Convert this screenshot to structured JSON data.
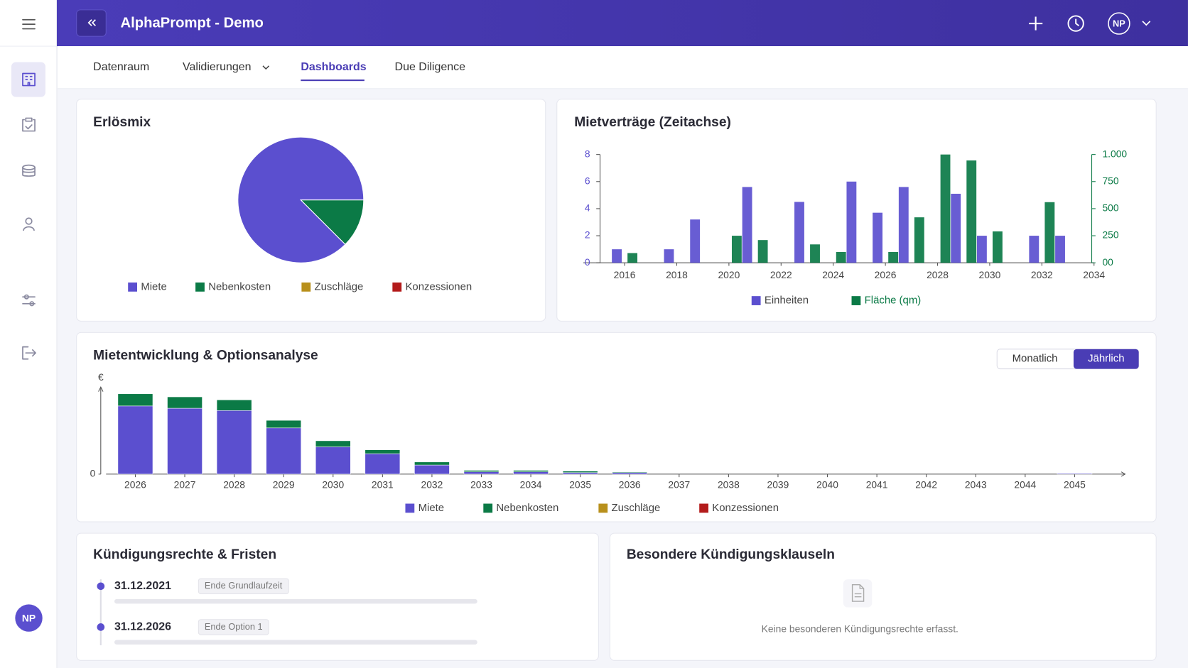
{
  "header": {
    "title": "AlphaPrompt - Demo",
    "user": "NP"
  },
  "sidebar": {
    "user": "NP"
  },
  "tabs": [
    "Datenraum",
    "Validierungen",
    "Dashboards",
    "Due Diligence"
  ],
  "chart_data": [
    {
      "type": "pie",
      "title": "Erlösmix",
      "categories": [
        "Miete",
        "Nebenkosten",
        "Zuschläge",
        "Konzessionen"
      ],
      "values": [
        87.5,
        12.5,
        0,
        0
      ],
      "colors": [
        "#5b4fcf",
        "#0b7a46",
        "#b8901c",
        "#b31b1b"
      ]
    },
    {
      "type": "bar",
      "title": "Mietverträge (Zeitachse)",
      "x": [
        2016,
        2017,
        2018,
        2019,
        2020,
        2021,
        2022,
        2023,
        2024,
        2025,
        2026,
        2027,
        2028,
        2029,
        2030,
        2031,
        2032,
        2033
      ],
      "series": [
        {
          "name": "Einheiten",
          "color": "#5b4fcf",
          "axis": "y",
          "values": [
            1,
            null,
            1,
            3.2,
            null,
            5.6,
            null,
            4.5,
            null,
            6,
            3.7,
            5.6,
            null,
            5.1,
            2,
            null,
            2,
            2
          ]
        },
        {
          "name": "Fläche (qm)",
          "color": "#0b7a46",
          "axis": "y2",
          "values": [
            90,
            null,
            null,
            null,
            250,
            210,
            null,
            170,
            100,
            null,
            100,
            420,
            1000,
            945,
            290,
            null,
            560,
            null
          ]
        }
      ],
      "xlim": [
        2015,
        2034
      ],
      "xticks": [
        2016,
        2018,
        2020,
        2022,
        2024,
        2026,
        2028,
        2030,
        2032,
        2034
      ],
      "ylim": [
        0,
        8
      ],
      "yticks": [
        0,
        2,
        4,
        6,
        8
      ],
      "y2lim": [
        0,
        1000
      ],
      "y2ticks": [
        {
          "value": 0,
          "label": "00"
        },
        250,
        500,
        750,
        {
          "value": 1000,
          "label": "1.000"
        }
      ],
      "grid": false
    },
    {
      "type": "stacked_bar",
      "title": "Mietentwicklung & Optionsanalyse",
      "y_label": "€",
      "categories": [
        "2026",
        "2027",
        "2028",
        "2029",
        "2030",
        "2031",
        "2032",
        "2033",
        "2034",
        "2035",
        "2036",
        "2037",
        "2038",
        "2039",
        "2040",
        "2041",
        "2042",
        "2043",
        "2044",
        "2045"
      ],
      "series": [
        {
          "name": "Miete",
          "color": "#5b4fcf",
          "values": [
            90,
            87,
            84,
            61,
            36,
            27,
            12,
            3,
            3,
            2,
            2,
            0,
            0,
            0,
            0,
            0,
            0,
            0,
            0,
            1
          ]
        },
        {
          "name": "Nebenkosten",
          "color": "#0b7a46",
          "values": [
            16,
            15,
            14,
            10,
            8,
            5,
            4,
            2,
            2,
            2,
            1,
            0,
            0,
            0,
            0,
            0,
            0,
            0,
            0,
            0
          ]
        },
        {
          "name": "Zuschläge",
          "color": "#b8901c",
          "values": [
            0,
            0,
            0,
            0,
            0,
            0,
            0,
            0,
            0,
            0,
            0,
            0,
            0,
            0,
            0,
            0,
            0,
            0,
            0,
            0
          ]
        },
        {
          "name": "Konzessionen",
          "color": "#b31b1b",
          "values": [
            0,
            0,
            0,
            0,
            0,
            0,
            0,
            0,
            0,
            0,
            0,
            0,
            0,
            0,
            0,
            0,
            0,
            0,
            0,
            0
          ]
        }
      ],
      "ylim": [
        0,
        115
      ],
      "yticks": [
        0
      ],
      "grid": false
    }
  ],
  "period_toggle": [
    "Monatlich",
    "Jährlich"
  ],
  "termination_rights": {
    "title": "Kündigungsrechte & Fristen",
    "items": [
      {
        "date": "31.12.2021",
        "label": "Ende Grundlaufzeit"
      },
      {
        "date": "31.12.2026",
        "label": "Ende Option 1"
      }
    ]
  },
  "special_clauses": {
    "title": "Besondere Kündigungsklauseln",
    "empty_text": "Keine besonderen Kündigungsrechte erfasst."
  }
}
